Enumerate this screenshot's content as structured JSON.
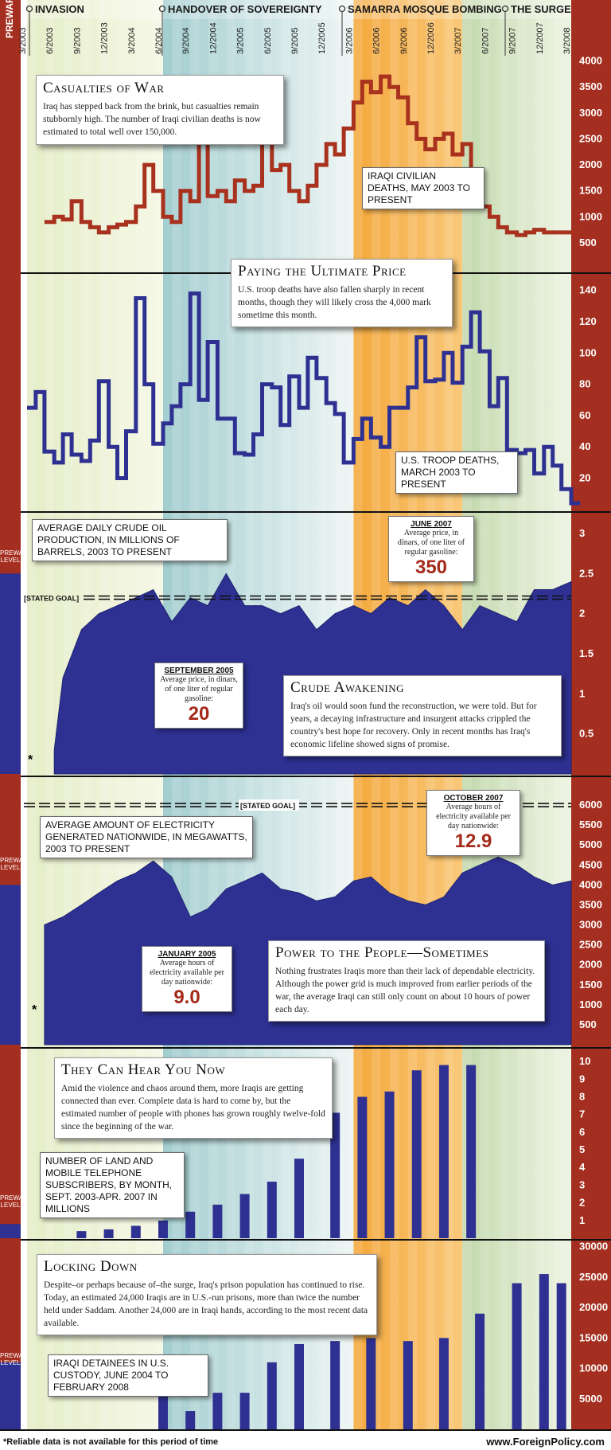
{
  "eras": [
    {
      "label": "PREWAR"
    },
    {
      "label": "INVASION"
    },
    {
      "label": "HANDOVER OF SOVEREIGNTY"
    },
    {
      "label": "SAMARRA MOSQUE BOMBING"
    },
    {
      "label": "THE SURGE"
    }
  ],
  "timeline_ticks": [
    "3/2003",
    "6/2003",
    "9/2003",
    "12/2003",
    "3/2004",
    "6/2004",
    "9/2004",
    "12/2004",
    "3/2005",
    "6/2005",
    "9/2005",
    "12/2005",
    "3/2006",
    "6/2006",
    "9/2006",
    "12/2006",
    "3/2007",
    "6/2007",
    "9/2007",
    "12/2007",
    "3/2008"
  ],
  "colors": {
    "red_axis": "#a42e1f",
    "civilian_line": "#a8321e",
    "troop_line": "#2e3192",
    "fill_blue": "#2e3192",
    "invasion": "#e5edc7",
    "handover": "#a3cdd0",
    "samarra": "#f4a83c",
    "surge": "#c3d9ad"
  },
  "panels": {
    "casualties": {
      "title": "Casualties of War",
      "text": "Iraq has stepped back from the brink, but casualties remain stubbornly high. The number of Iraqi civilian deaths is now estimated to total well over 150,000.",
      "label": "IRAQI CIVILIAN DEATHS, MAY 2003 TO PRESENT"
    },
    "troops": {
      "title": "Paying the Ultimate Price",
      "text": "U.S. troop deaths have also fallen sharply in recent months, though they will likely cross the 4,000 mark sometime this month.",
      "label": "U.S. TROOP DEATHS, MARCH 2003 TO PRESENT"
    },
    "oil": {
      "label": "AVERAGE DAILY CRUDE OIL PRODUCTION, IN MILLIONS OF BARRELS, 2003 TO PRESENT",
      "goal": "[STATED GOAL]",
      "prewar": "PREWAR LEVEL",
      "star": "*",
      "callout_a": {
        "head": "SEPTEMBER 2005",
        "text": "Average price, in dinars, of one liter of regular gasoline:",
        "value": "20"
      },
      "callout_b": {
        "head": "JUNE 2007",
        "text": "Average price, in dinars, of one liter of regular gasoline:",
        "value": "350"
      },
      "title": "Crude Awakening",
      "text": "Iraq's oil would soon fund the reconstruction, we were told. But for years, a decaying infrastructure and insurgent attacks crippled the country's best hope for recovery. Only in recent months has Iraq's economic lifeline showed signs of promise."
    },
    "power": {
      "label": "AVERAGE AMOUNT OF ELECTRICITY GENERATED NATIONWIDE, IN MEGAWATTS, 2003 TO PRESENT",
      "goal": "[STATED GOAL]",
      "prewar": "PREWAR LEVEL",
      "star": "*",
      "callout_a": {
        "head": "JANUARY 2005",
        "text": "Average hours of electricity available per day nationwide:",
        "value": "9.0"
      },
      "callout_b": {
        "head": "OCTOBER 2007",
        "text": "Average hours of electricity available per day nationwide:",
        "value": "12.9"
      },
      "title": "Power to the People—Sometimes",
      "text": "Nothing frustrates Iraqis more than their lack of dependable electricity. Although the power grid is much improved from earlier periods of the war, the average Iraqi can still only count on about 10 hours of power each day."
    },
    "phones": {
      "title": "They Can Hear You Now",
      "text": "Amid the violence and chaos around them, more Iraqis are getting connected than ever. Complete data is hard to come by, but the estimated number of people with phones has grown roughly twelve-fold since the beginning of the war.",
      "label": "NUMBER OF LAND AND MOBILE TELEPHONE SUBSCRIBERS, BY MONTH, SEPT. 2003-APR. 2007 IN MILLIONS",
      "prewar": "PREWAR LEVEL"
    },
    "prison": {
      "title": "Locking Down",
      "text": "Despite–or perhaps because of–the surge, Iraq's prison population has continued to rise. Today, an estimated 24,000 Iraqis are in U.S.-run prisons, more than twice the number held under Saddam. Another 24,000 are in Iraqi hands, according to the most recent data available.",
      "label": "IRAQI DETAINEES IN U.S. CUSTODY, JUNE 2004 TO FEBRUARY 2008",
      "prewar": "PREWAR LEVEL"
    }
  },
  "footer": {
    "note": "*Reliable data is not available for this period of time",
    "site": "www.ForeignPolicy.com"
  },
  "chart_data": [
    {
      "type": "line",
      "name": "civilian",
      "title": "Casualties of War",
      "ylabel": "",
      "ylim": [
        300,
        4100
      ],
      "yticks": [
        500,
        1000,
        1500,
        2000,
        2500,
        3000,
        3500,
        4000
      ],
      "x": [
        2003.33,
        2003.42,
        2003.5,
        2003.58,
        2003.67,
        2003.75,
        2003.83,
        2003.92,
        2004.0,
        2004.08,
        2004.17,
        2004.25,
        2004.33,
        2004.42,
        2004.5,
        2004.58,
        2004.67,
        2004.75,
        2004.83,
        2004.92,
        2005.0,
        2005.08,
        2005.17,
        2005.25,
        2005.33,
        2005.42,
        2005.5,
        2005.58,
        2005.67,
        2005.75,
        2005.83,
        2005.92,
        2006.0,
        2006.08,
        2006.17,
        2006.25,
        2006.33,
        2006.42,
        2006.5,
        2006.58,
        2006.67,
        2006.75,
        2006.83,
        2006.92,
        2007.0,
        2007.08,
        2007.17,
        2007.25,
        2007.33,
        2007.42,
        2007.5,
        2007.58,
        2007.67,
        2007.75,
        2007.83,
        2007.92,
        2008.0,
        2008.08,
        2008.17
      ],
      "values": [
        900,
        1000,
        950,
        1300,
        900,
        800,
        700,
        800,
        850,
        900,
        1200,
        2000,
        1500,
        1000,
        900,
        1500,
        1300,
        2700,
        1400,
        1500,
        1300,
        1700,
        1500,
        1600,
        3300,
        1900,
        2000,
        1500,
        1300,
        1600,
        2000,
        2400,
        2200,
        2700,
        3200,
        3600,
        3400,
        3700,
        3500,
        3300,
        2800,
        2500,
        2300,
        2500,
        2600,
        2200,
        2400,
        1900,
        1200,
        1000,
        800,
        700,
        650,
        700,
        750,
        700,
        700,
        700,
        700
      ]
    },
    {
      "type": "line",
      "name": "troops",
      "title": "Paying the Ultimate Price",
      "ylabel": "",
      "ylim": [
        5,
        150
      ],
      "yticks": [
        20,
        40,
        60,
        80,
        100,
        120,
        140
      ],
      "x": [
        2003.17,
        2003.25,
        2003.33,
        2003.42,
        2003.5,
        2003.58,
        2003.67,
        2003.75,
        2003.83,
        2003.92,
        2004.0,
        2004.08,
        2004.17,
        2004.25,
        2004.33,
        2004.42,
        2004.5,
        2004.58,
        2004.67,
        2004.75,
        2004.83,
        2004.92,
        2005.0,
        2005.08,
        2005.17,
        2005.25,
        2005.33,
        2005.42,
        2005.5,
        2005.58,
        2005.67,
        2005.75,
        2005.83,
        2005.92,
        2006.0,
        2006.08,
        2006.17,
        2006.25,
        2006.33,
        2006.42,
        2006.5,
        2006.58,
        2006.67,
        2006.75,
        2006.83,
        2006.92,
        2007.0,
        2007.08,
        2007.17,
        2007.25,
        2007.33,
        2007.42,
        2007.5,
        2007.58,
        2007.67,
        2007.75,
        2007.83,
        2007.92,
        2008.0,
        2008.08,
        2008.17
      ],
      "values": [
        65,
        75,
        37,
        30,
        48,
        35,
        31,
        44,
        82,
        40,
        20,
        50,
        135,
        80,
        42,
        55,
        66,
        80,
        138,
        70,
        107,
        58,
        58,
        36,
        35,
        48,
        80,
        78,
        54,
        85,
        65,
        97,
        84,
        68,
        61,
        30,
        45,
        58,
        46,
        40,
        65,
        65,
        78,
        110,
        82,
        83,
        100,
        81,
        104,
        126,
        101,
        66,
        84,
        38,
        36,
        38,
        23,
        40,
        28,
        13,
        4
      ]
    },
    {
      "type": "area",
      "name": "oil",
      "title": "Crude Awakening",
      "ylabel": "",
      "ylim": [
        0,
        3.1
      ],
      "yticks": [
        0.5,
        1,
        1.5,
        2,
        2.5,
        3
      ],
      "goal": 2.2,
      "prewar": 2.5,
      "x": [
        2003.42,
        2003.5,
        2003.67,
        2003.83,
        2004.0,
        2004.17,
        2004.33,
        2004.5,
        2004.67,
        2004.83,
        2005.0,
        2005.17,
        2005.33,
        2005.5,
        2005.67,
        2005.83,
        2006.0,
        2006.17,
        2006.33,
        2006.5,
        2006.67,
        2006.83,
        2007.0,
        2007.17,
        2007.33,
        2007.5,
        2007.67,
        2007.83,
        2008.0,
        2008.17
      ],
      "values": [
        0.3,
        1.2,
        1.8,
        2.0,
        2.1,
        2.2,
        2.3,
        1.9,
        2.2,
        2.1,
        2.5,
        2.1,
        2.1,
        2.0,
        2.1,
        1.8,
        2.0,
        2.1,
        2.0,
        2.2,
        2.1,
        2.3,
        2.1,
        1.8,
        2.1,
        2.0,
        1.9,
        2.3,
        2.3,
        2.4
      ]
    },
    {
      "type": "area",
      "name": "power",
      "title": "Power to the People—Sometimes",
      "ylabel": "",
      "ylim": [
        0,
        6300
      ],
      "yticks": [
        500,
        1000,
        1500,
        2000,
        2500,
        3000,
        3500,
        4000,
        4500,
        5000,
        5500,
        6000
      ],
      "goal": 6000,
      "prewar": 4000,
      "x": [
        2003.33,
        2003.5,
        2003.67,
        2003.83,
        2004.0,
        2004.17,
        2004.33,
        2004.5,
        2004.67,
        2004.83,
        2005.0,
        2005.17,
        2005.33,
        2005.5,
        2005.67,
        2005.83,
        2006.0,
        2006.17,
        2006.33,
        2006.5,
        2006.67,
        2006.83,
        2007.0,
        2007.17,
        2007.33,
        2007.5,
        2007.67,
        2007.83,
        2008.0,
        2008.17
      ],
      "values": [
        3000,
        3200,
        3500,
        3800,
        4100,
        4300,
        4600,
        4200,
        3200,
        3400,
        3900,
        4100,
        4300,
        3900,
        3800,
        3600,
        3700,
        4100,
        4200,
        3800,
        3600,
        3500,
        3700,
        4300,
        4500,
        4700,
        4500,
        4200,
        4000,
        4100
      ]
    },
    {
      "type": "area",
      "name": "phones",
      "title": "They Can Hear You Now",
      "ylabel": "",
      "ylim": [
        0,
        10.5
      ],
      "yticks": [
        1,
        2,
        3,
        4,
        5,
        6,
        7,
        8,
        9,
        10
      ],
      "prewar": 0.8,
      "x": [
        2003.67,
        2003.92,
        2004.17,
        2004.42,
        2004.67,
        2004.92,
        2005.17,
        2005.42,
        2005.67,
        2006.0,
        2006.25,
        2006.5,
        2006.75,
        2007.0,
        2007.25
      ],
      "values": [
        0.4,
        0.5,
        0.7,
        1.0,
        1.5,
        1.9,
        2.5,
        3.2,
        4.5,
        7.1,
        8.0,
        8.3,
        9.5,
        9.8,
        9.8
      ]
    },
    {
      "type": "area",
      "name": "prison",
      "title": "Locking Down",
      "ylabel": "",
      "ylim": [
        0,
        31000
      ],
      "yticks": [
        5000,
        10000,
        15000,
        20000,
        25000,
        30000
      ],
      "prewar": 11000,
      "x": [
        2004.42,
        2004.67,
        2004.92,
        2005.17,
        2005.42,
        2005.67,
        2006.0,
        2006.33,
        2006.67,
        2007.0,
        2007.33,
        2007.67,
        2007.92,
        2008.08
      ],
      "values": [
        5500,
        3000,
        6000,
        6000,
        11000,
        14000,
        14500,
        15000,
        14500,
        15000,
        19000,
        24000,
        25500,
        24000
      ]
    }
  ]
}
